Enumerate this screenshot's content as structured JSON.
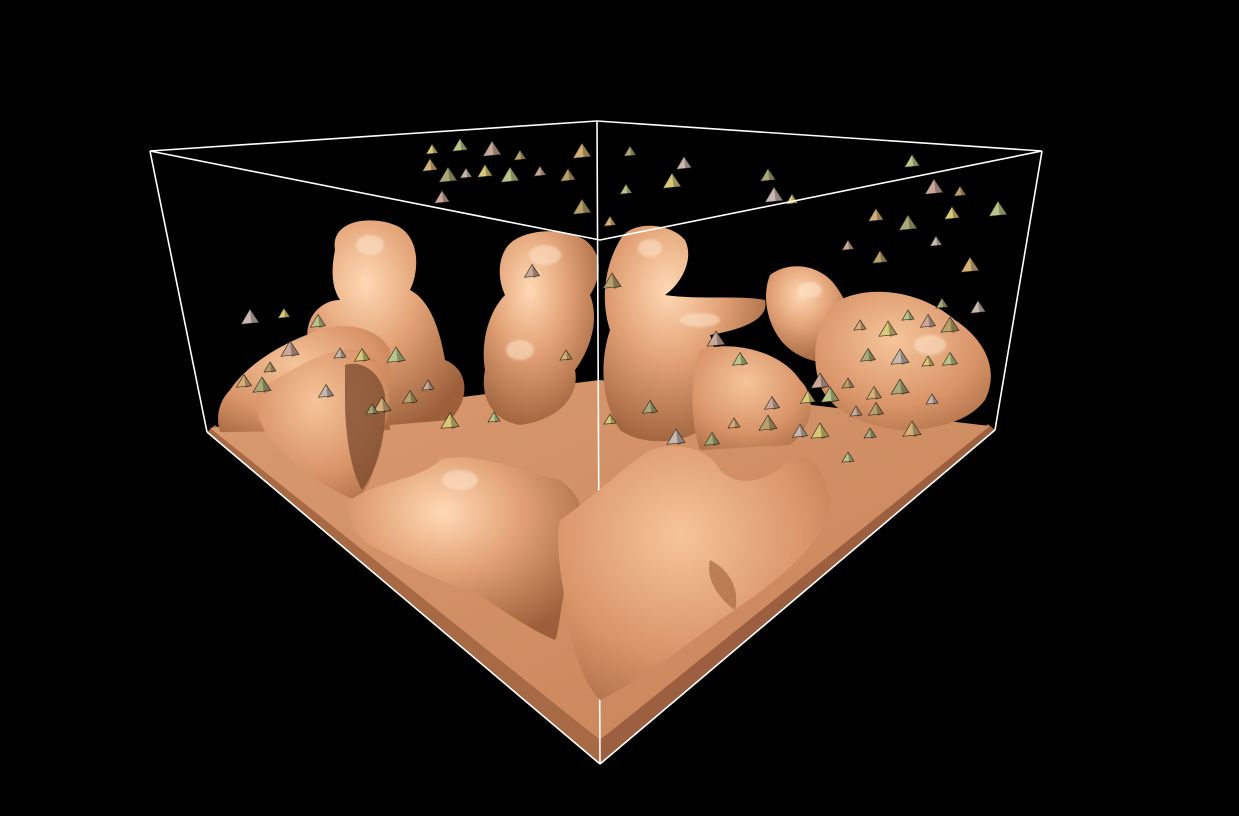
{
  "scene": {
    "background_color": "#000000",
    "box_color": "#ffffff",
    "surface_base_color": "#d9966a",
    "surface_highlight_color": "#f8c49a",
    "surface_shadow_color": "#7a4a2c",
    "particle_colors": [
      "#d8c878",
      "#b9c48a",
      "#c9a89a",
      "#b8a06a",
      "#d4b078",
      "#a8a878",
      "#c8b8b0"
    ]
  }
}
